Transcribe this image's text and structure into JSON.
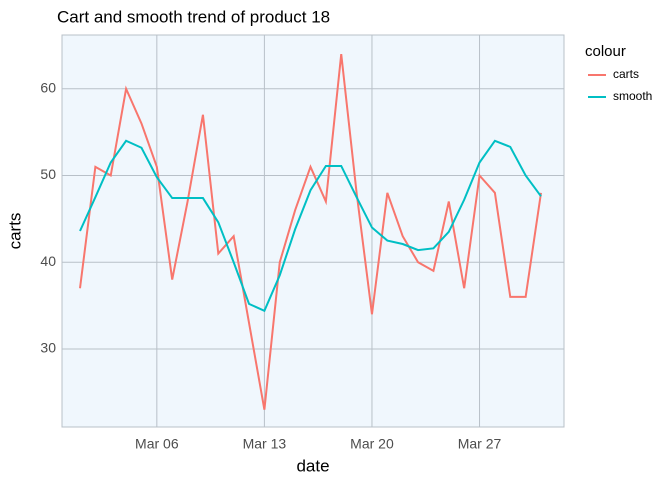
{
  "chart_data": {
    "type": "line",
    "title": "Cart and smooth trend of product 18",
    "x_label": "date",
    "y_label": "carts",
    "legend_title": "colour",
    "categories": [
      "Mar 01",
      "Mar 02",
      "Mar 03",
      "Mar 04",
      "Mar 05",
      "Mar 06",
      "Mar 07",
      "Mar 08",
      "Mar 09",
      "Mar 10",
      "Mar 11",
      "Mar 12",
      "Mar 13",
      "Mar 14",
      "Mar 15",
      "Mar 16",
      "Mar 17",
      "Mar 18",
      "Mar 19",
      "Mar 20",
      "Mar 21",
      "Mar 22",
      "Mar 23",
      "Mar 24",
      "Mar 25",
      "Mar 26",
      "Mar 27",
      "Mar 28",
      "Mar 29",
      "Mar 30",
      "Mar 31"
    ],
    "xticks": [
      "Mar 06",
      "Mar 13",
      "Mar 20",
      "Mar 27"
    ],
    "series": [
      {
        "name": "carts",
        "color": "#f8766d",
        "values": [
          37,
          51,
          50,
          60,
          56,
          51,
          38,
          47,
          57,
          41,
          43,
          33,
          23,
          40,
          46,
          51,
          47,
          64,
          48,
          34,
          48,
          43,
          40,
          39,
          47,
          37,
          50,
          48,
          36,
          36,
          48
        ]
      },
      {
        "name": "smooth",
        "color": "#00bfc4",
        "values": [
          43.6,
          47.5,
          51.5,
          54,
          53.2,
          49.8,
          47.4,
          47.4,
          47.4,
          44.6,
          40,
          35.2,
          34.4,
          38.5,
          43.8,
          48.3,
          51.1,
          51.1,
          47.5,
          44,
          42.5,
          42.1,
          41.4,
          41.6,
          43.5,
          47.2,
          51.5,
          54,
          53.3,
          50,
          47.6
        ]
      }
    ],
    "ylim": [
      21,
      66.2
    ],
    "yticks": [
      30,
      40,
      50,
      60
    ],
    "grid": true
  }
}
